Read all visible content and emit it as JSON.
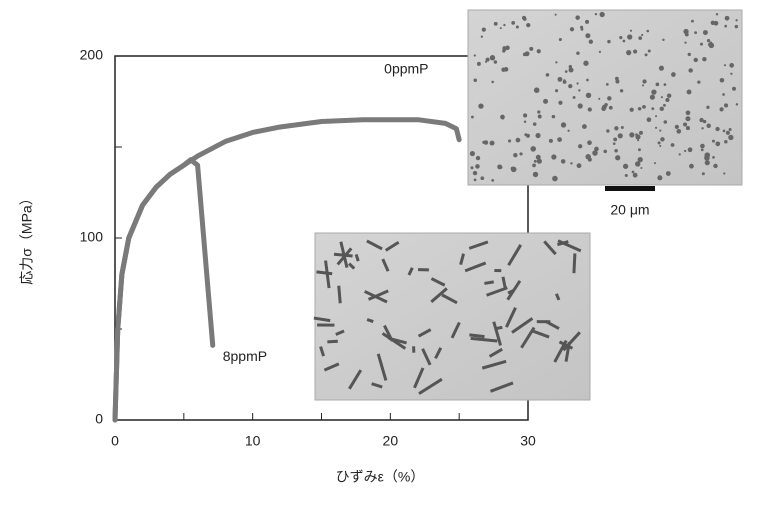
{
  "chart_data": {
    "type": "line",
    "x_label": "ひずみε（%）",
    "y_label": "応力σ（MPa）",
    "xlim": [
      0,
      30
    ],
    "xticks": [
      0,
      10,
      20,
      30
    ],
    "xminorticks": [
      5,
      15,
      25
    ],
    "ylim": [
      0,
      200
    ],
    "yticks": [
      0,
      100,
      200
    ],
    "yminorticks": [
      50,
      150
    ],
    "series": [
      {
        "name": "0ppmP",
        "color": "#7a7a7a",
        "x": [
          0,
          0.2,
          0.5,
          1,
          2,
          3,
          4,
          5,
          6,
          8,
          10,
          12,
          15,
          18,
          20,
          22,
          24,
          24.8,
          25
        ],
        "values": [
          0,
          50,
          80,
          100,
          118,
          128,
          135,
          140,
          145,
          153,
          158,
          161,
          164,
          165,
          165,
          165,
          163,
          160,
          154
        ]
      },
      {
        "name": "8ppmP",
        "color": "#7a7a7a",
        "x": [
          0,
          0.2,
          0.5,
          1,
          2,
          3,
          4,
          5,
          5.5,
          6,
          7.1
        ],
        "values": [
          0,
          50,
          80,
          100,
          118,
          128,
          135,
          140,
          143,
          140,
          41
        ]
      }
    ],
    "scale_bar_label": "20 μm"
  }
}
